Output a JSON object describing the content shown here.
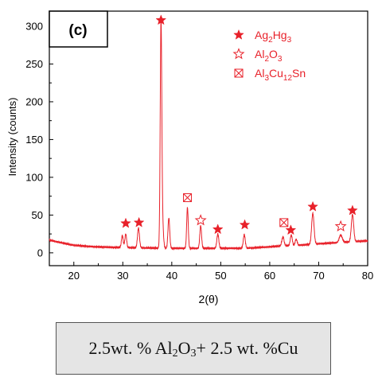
{
  "chart_data": {
    "type": "line",
    "panel_label": "(c)",
    "xlabel": "2(θ)",
    "ylabel": "Intensity (counts)",
    "xlim": [
      15,
      80
    ],
    "ylim": [
      -17,
      320
    ],
    "xticks": [
      20,
      30,
      40,
      50,
      60,
      70,
      80
    ],
    "yticks": [
      0,
      50,
      100,
      150,
      200,
      250,
      300
    ],
    "line_color": "#e8212a",
    "background": {
      "points": [
        [
          15,
          17
        ],
        [
          17,
          14
        ],
        [
          20,
          10
        ],
        [
          24,
          8
        ],
        [
          30,
          7
        ],
        [
          40,
          6
        ],
        [
          50,
          6
        ],
        [
          55,
          6
        ],
        [
          60,
          8
        ],
        [
          62,
          9
        ],
        [
          66,
          10
        ],
        [
          70,
          12
        ],
        [
          75,
          14
        ],
        [
          80,
          16
        ]
      ]
    },
    "peaks": [
      {
        "x": 29.9,
        "h": 16,
        "w": 0.18
      },
      {
        "x": 30.6,
        "h": 18,
        "w": 0.18
      },
      {
        "x": 33.2,
        "h": 26,
        "w": 0.2
      },
      {
        "x": 37.8,
        "h": 294,
        "w": 0.16
      },
      {
        "x": 38.1,
        "h": 30,
        "w": 0.2
      },
      {
        "x": 39.4,
        "h": 40,
        "w": 0.18
      },
      {
        "x": 43.2,
        "h": 54,
        "w": 0.16
      },
      {
        "x": 45.9,
        "h": 30,
        "w": 0.18
      },
      {
        "x": 49.4,
        "h": 19,
        "w": 0.2
      },
      {
        "x": 54.8,
        "h": 18,
        "w": 0.2
      },
      {
        "x": 62.7,
        "h": 12,
        "w": 0.22
      },
      {
        "x": 64.4,
        "h": 14,
        "w": 0.2
      },
      {
        "x": 65.4,
        "h": 8,
        "w": 0.2
      },
      {
        "x": 68.8,
        "h": 41,
        "w": 0.24
      },
      {
        "x": 74.5,
        "h": 10,
        "w": 0.3
      },
      {
        "x": 76.9,
        "h": 36,
        "w": 0.24
      }
    ],
    "markers": [
      {
        "phase": "Ag2Hg3",
        "x": 30.6,
        "y": 39
      },
      {
        "phase": "Ag2Hg3",
        "x": 33.3,
        "y": 40
      },
      {
        "phase": "Ag2Hg3",
        "x": 37.8,
        "y": 308
      },
      {
        "phase": "Al3Cu12Sn",
        "x": 43.2,
        "y": 73
      },
      {
        "phase": "Al2O3",
        "x": 45.9,
        "y": 43
      },
      {
        "phase": "Ag2Hg3",
        "x": 49.4,
        "y": 31
      },
      {
        "phase": "Ag2Hg3",
        "x": 54.9,
        "y": 37
      },
      {
        "phase": "Al3Cu12Sn",
        "x": 62.9,
        "y": 40
      },
      {
        "phase": "Ag2Hg3",
        "x": 64.3,
        "y": 30
      },
      {
        "phase": "Ag2Hg3",
        "x": 68.8,
        "y": 61
      },
      {
        "phase": "Al2O3",
        "x": 74.5,
        "y": 35
      },
      {
        "phase": "Ag2Hg3",
        "x": 76.9,
        "y": 56
      }
    ],
    "legend": {
      "placement": "top-right",
      "entries": [
        {
          "symbol": "filled-star-icon",
          "phase": "Ag2Hg3",
          "parts": [
            [
              "Ag",
              "n"
            ],
            [
              "2",
              "sub"
            ],
            [
              "Hg",
              "n"
            ],
            [
              "3",
              "sub"
            ]
          ]
        },
        {
          "symbol": "open-star-icon",
          "phase": "Al2O3",
          "parts": [
            [
              "Al",
              "n"
            ],
            [
              "2",
              "sub"
            ],
            [
              "O",
              "n"
            ],
            [
              "3",
              "sub"
            ]
          ]
        },
        {
          "symbol": "boxed-x-icon",
          "phase": "Al3Cu12Sn",
          "parts": [
            [
              "Al",
              "n"
            ],
            [
              "3",
              "sub"
            ],
            [
              "Cu",
              "n"
            ],
            [
              "12",
              "sub"
            ],
            [
              "Sn",
              "n"
            ]
          ]
        }
      ]
    }
  },
  "caption": {
    "parts": [
      {
        "text": "2.5wt. % Al",
        "sub": false
      },
      {
        "text": "2",
        "sub": true
      },
      {
        "text": "O",
        "sub": false
      },
      {
        "text": "3",
        "sub": true
      },
      {
        "text": "+ 2.5 wt. %Cu",
        "sub": false
      }
    ]
  }
}
